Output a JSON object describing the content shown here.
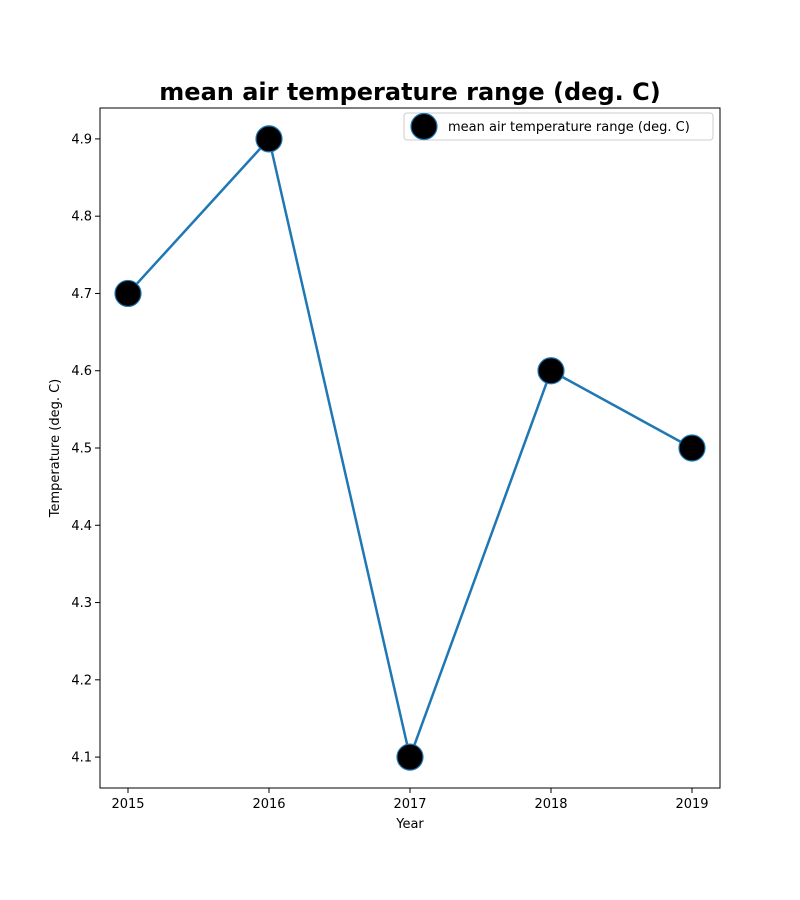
{
  "chart_data": {
    "type": "line",
    "title": "mean air temperature range (deg. C)",
    "xlabel": "Year",
    "ylabel": "Temperature (deg. C)",
    "x": [
      "2015",
      "2016",
      "2017",
      "2018",
      "2019"
    ],
    "series": [
      {
        "name": "mean air temperature range (deg. C)",
        "values": [
          4.7,
          4.9,
          4.1,
          4.6,
          4.5
        ],
        "line_color": "#1f77b4",
        "marker_color": "#000000",
        "marker_edge_color": "#1f77b4"
      }
    ],
    "yticks": [
      "4.1",
      "4.2",
      "4.3",
      "4.4",
      "4.5",
      "4.6",
      "4.7",
      "4.8",
      "4.9"
    ],
    "ylim": [
      4.06,
      4.94
    ],
    "grid": false,
    "legend_position": "top-right"
  }
}
